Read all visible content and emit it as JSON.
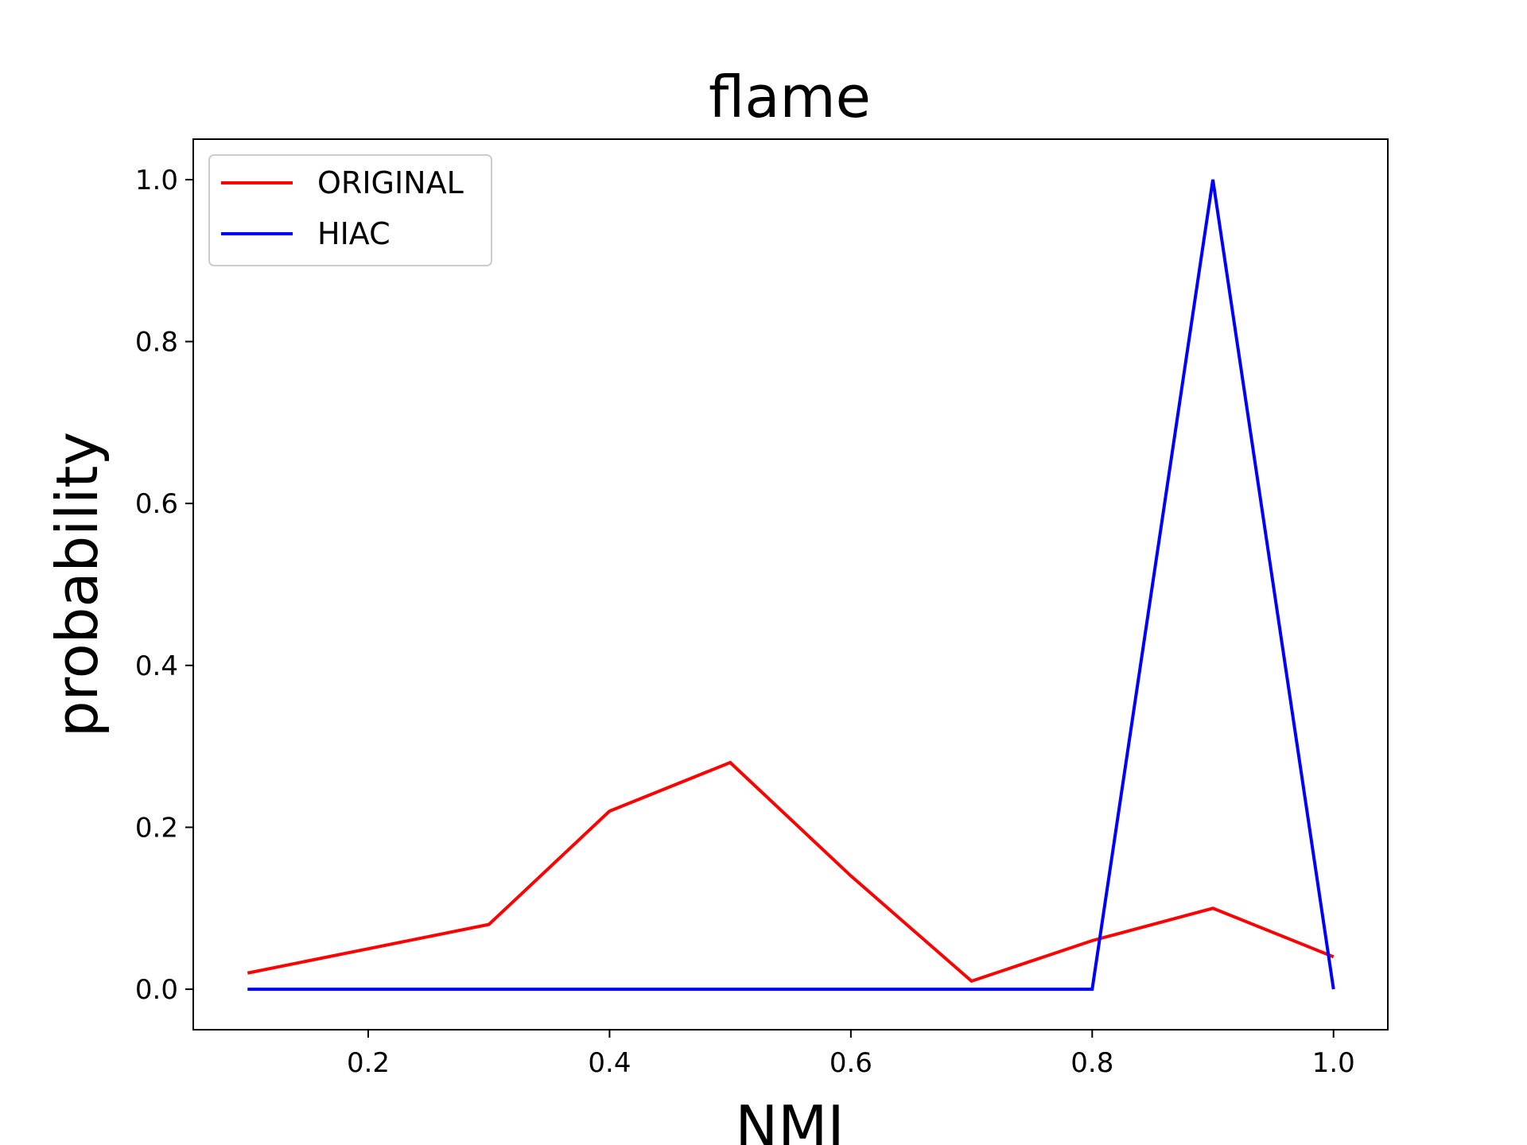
{
  "chart_data": {
    "type": "line",
    "title": "flame",
    "xlabel": "NMI",
    "ylabel": "probability",
    "xlim": [
      0.055,
      1.045
    ],
    "ylim": [
      -0.05,
      1.05
    ],
    "xticks": [
      0.2,
      0.4,
      0.6,
      0.8,
      1.0
    ],
    "xtick_labels": [
      "0.2",
      "0.4",
      "0.6",
      "0.8",
      "1.0"
    ],
    "yticks": [
      0.0,
      0.2,
      0.4,
      0.6,
      0.8,
      1.0
    ],
    "ytick_labels": [
      "0.0",
      "0.2",
      "0.4",
      "0.6",
      "0.8",
      "1.0"
    ],
    "grid": false,
    "legend_position": "top-left",
    "x": [
      0.1,
      0.2,
      0.3,
      0.4,
      0.5,
      0.6,
      0.7,
      0.8,
      0.9,
      1.0
    ],
    "series": [
      {
        "name": "ORIGINAL",
        "color": "#ff0000",
        "values": [
          0.02,
          0.05,
          0.08,
          0.22,
          0.28,
          0.14,
          0.01,
          0.06,
          0.1,
          0.04
        ]
      },
      {
        "name": "HIAC",
        "color": "#0000ff",
        "values": [
          0.0,
          0.0,
          0.0,
          0.0,
          0.0,
          0.0,
          0.0,
          0.0,
          1.0,
          0.0
        ]
      }
    ]
  }
}
